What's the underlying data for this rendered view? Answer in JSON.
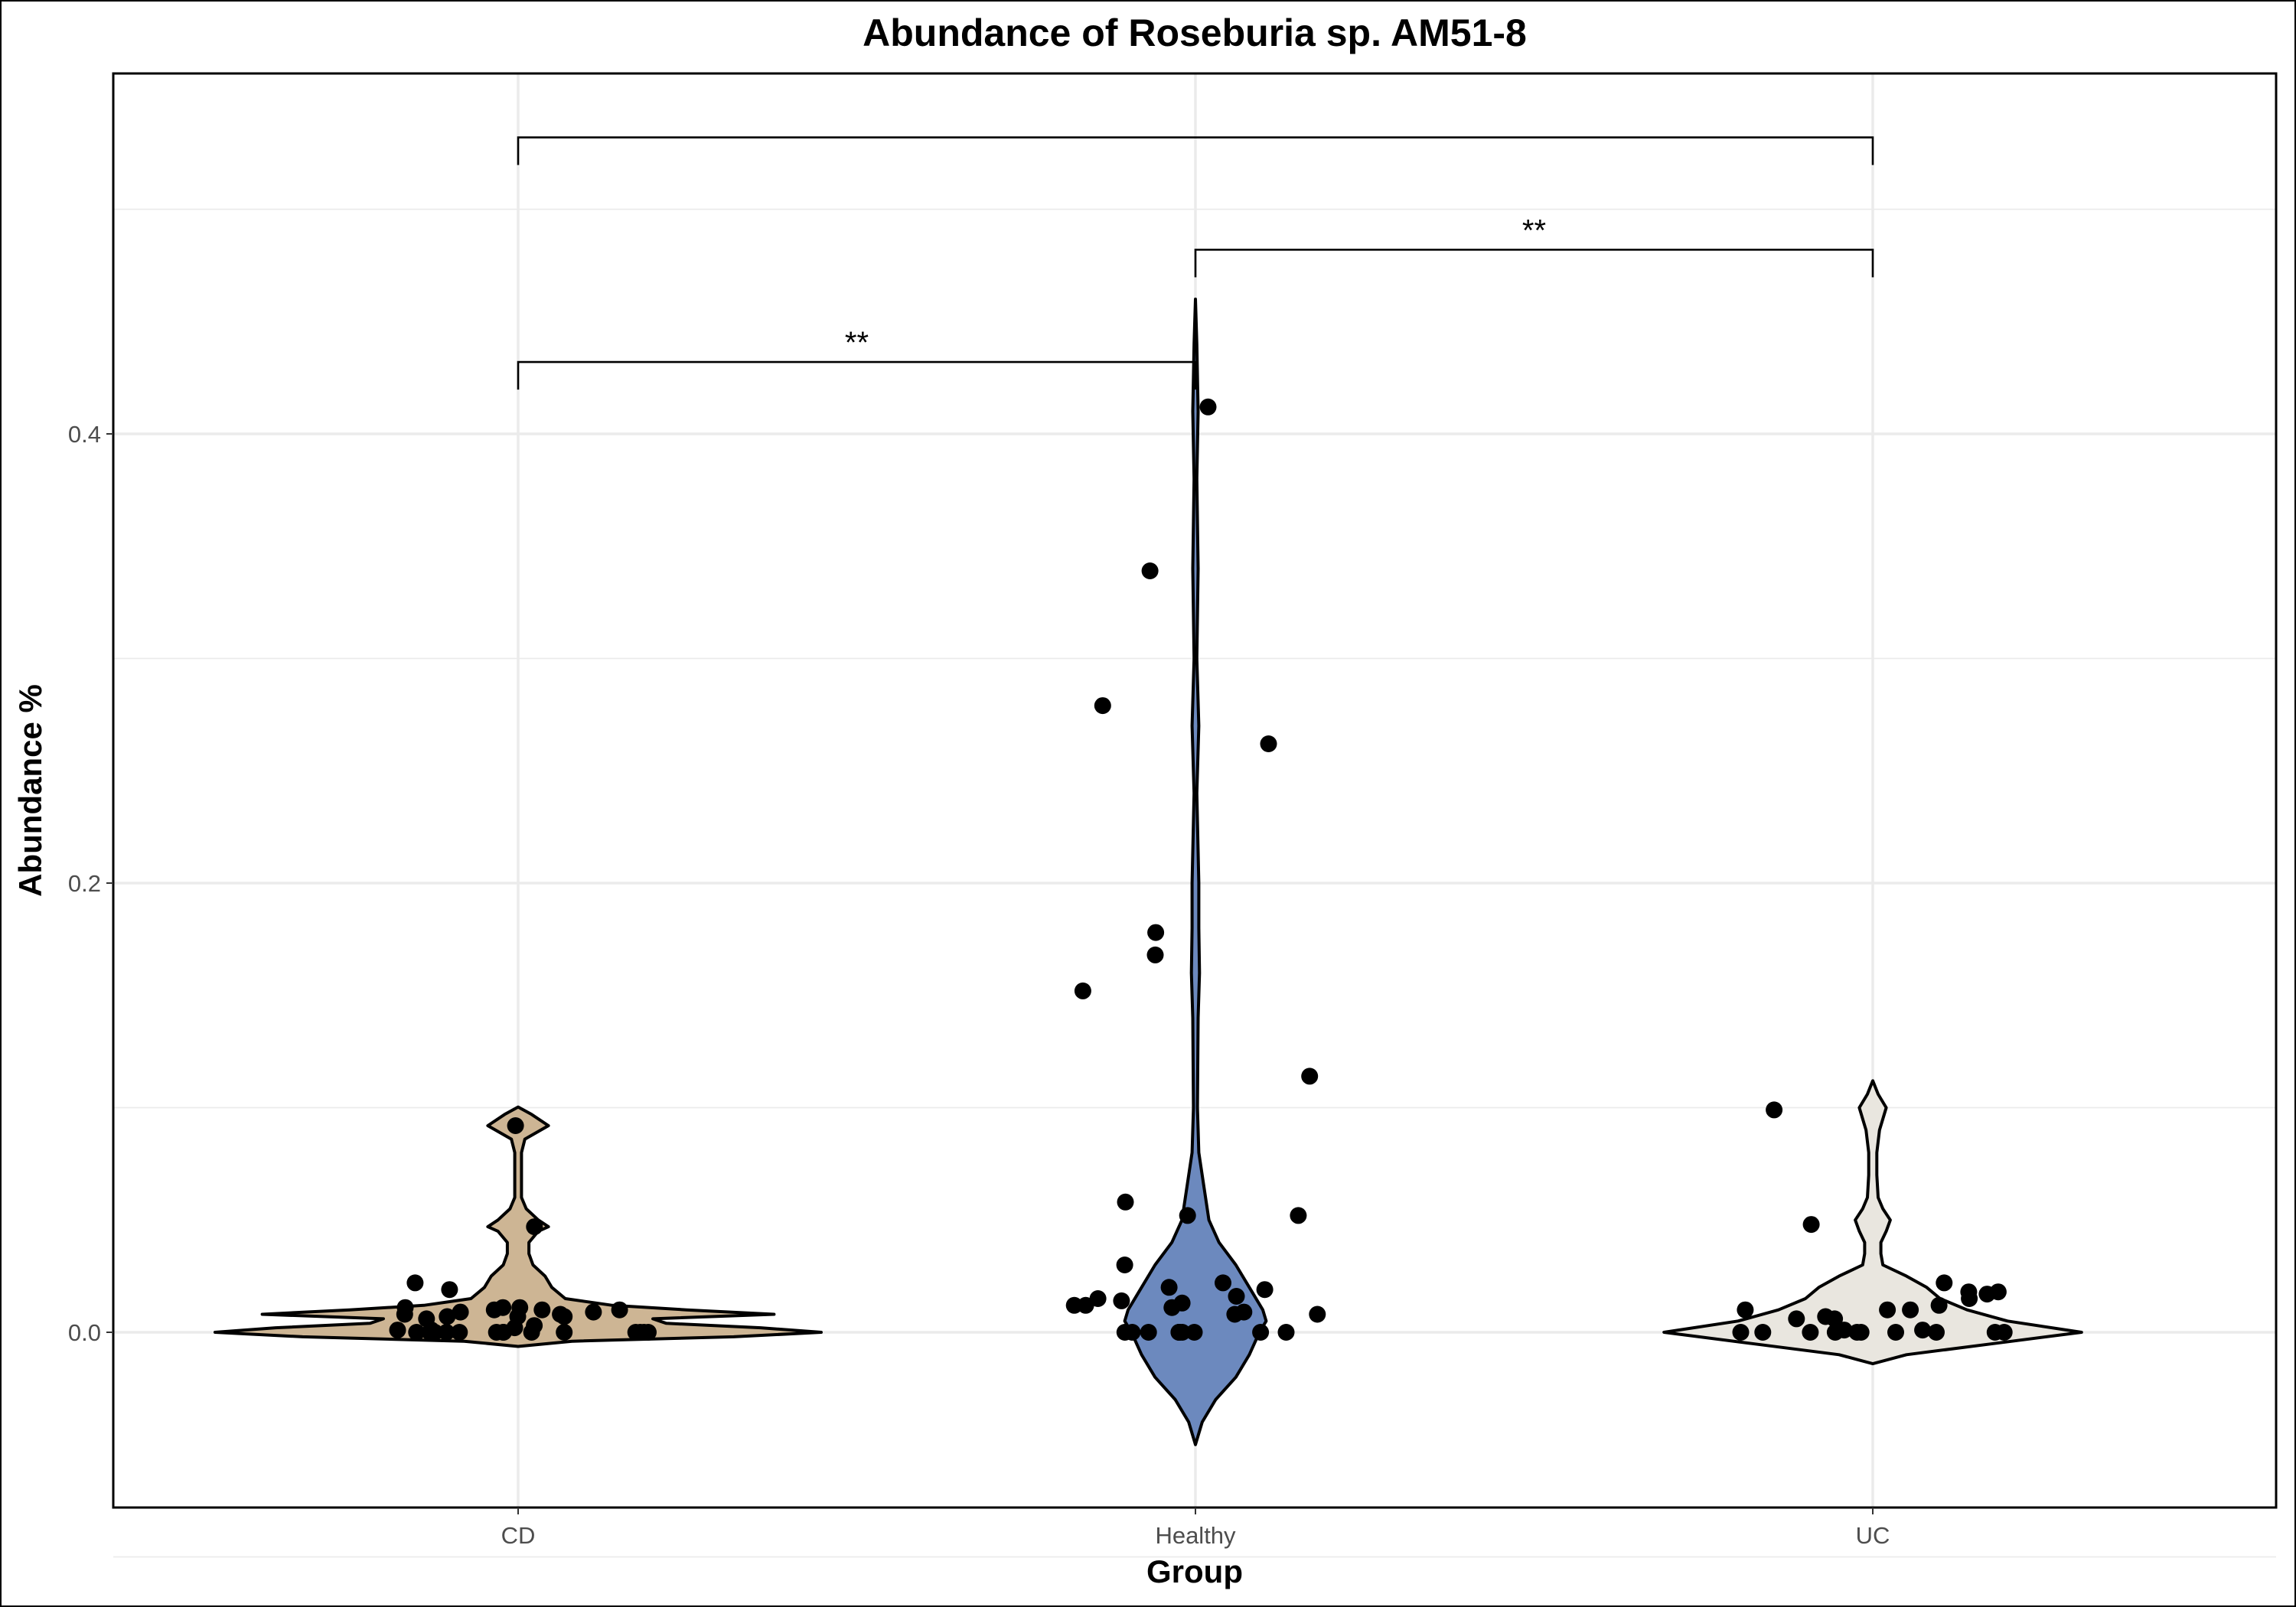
{
  "chart_data": {
    "type": "violin",
    "title": "Abundance of Roseburia sp. AM51-8",
    "xlabel": "Group",
    "ylabel": "Abundance %",
    "categories": [
      "CD",
      "Healthy",
      "UC"
    ],
    "ylim": [
      -0.078,
      0.56
    ],
    "yticks": [
      0.0,
      0.2,
      0.4
    ],
    "ytick_labels": [
      "0.0",
      "0.2",
      "0.4"
    ],
    "grid": true,
    "legend": "none",
    "colors": {
      "CD": "#cdb594",
      "Healthy": "#6c89be",
      "UC": "#e9e6df",
      "points": "#000000",
      "outline": "#000000"
    },
    "violins": [
      {
        "group": "CD",
        "profile": [
          [
            -0.0063,
            0.0
          ],
          [
            -0.004,
            0.08
          ],
          [
            -0.002,
            0.32
          ],
          [
            0.0,
            0.45
          ],
          [
            0.002,
            0.36
          ],
          [
            0.004,
            0.22
          ],
          [
            0.006,
            0.2
          ],
          [
            0.008,
            0.38
          ],
          [
            0.01,
            0.25
          ],
          [
            0.012,
            0.14
          ],
          [
            0.015,
            0.07
          ],
          [
            0.02,
            0.05
          ],
          [
            0.025,
            0.04
          ],
          [
            0.03,
            0.022
          ],
          [
            0.035,
            0.016
          ],
          [
            0.04,
            0.016
          ],
          [
            0.045,
            0.03
          ],
          [
            0.047,
            0.045
          ],
          [
            0.05,
            0.03
          ],
          [
            0.055,
            0.012
          ],
          [
            0.06,
            0.005
          ],
          [
            0.07,
            0.005
          ],
          [
            0.08,
            0.005
          ],
          [
            0.086,
            0.01
          ],
          [
            0.092,
            0.045
          ],
          [
            0.097,
            0.02
          ],
          [
            0.1003,
            0.0
          ]
        ]
      },
      {
        "group": "Healthy",
        "profile": [
          [
            -0.05,
            0.0
          ],
          [
            -0.04,
            0.01
          ],
          [
            -0.03,
            0.03
          ],
          [
            -0.02,
            0.06
          ],
          [
            -0.01,
            0.08
          ],
          [
            0.0,
            0.095
          ],
          [
            0.005,
            0.105
          ],
          [
            0.01,
            0.1
          ],
          [
            0.02,
            0.08
          ],
          [
            0.03,
            0.06
          ],
          [
            0.04,
            0.035
          ],
          [
            0.05,
            0.02
          ],
          [
            0.06,
            0.015
          ],
          [
            0.08,
            0.005
          ],
          [
            0.1,
            0.003
          ],
          [
            0.14,
            0.004
          ],
          [
            0.16,
            0.006
          ],
          [
            0.18,
            0.005
          ],
          [
            0.2,
            0.005
          ],
          [
            0.24,
            0.002
          ],
          [
            0.27,
            0.005
          ],
          [
            0.3,
            0.002
          ],
          [
            0.34,
            0.004
          ],
          [
            0.38,
            0.002
          ],
          [
            0.41,
            0.004
          ],
          [
            0.44,
            0.002
          ],
          [
            0.46,
            0.0
          ]
        ]
      },
      {
        "group": "UC",
        "profile": [
          [
            -0.014,
            0.0
          ],
          [
            -0.01,
            0.05
          ],
          [
            -0.005,
            0.18
          ],
          [
            0.0,
            0.31
          ],
          [
            0.005,
            0.2
          ],
          [
            0.01,
            0.14
          ],
          [
            0.015,
            0.1
          ],
          [
            0.02,
            0.08
          ],
          [
            0.025,
            0.05
          ],
          [
            0.03,
            0.015
          ],
          [
            0.035,
            0.012
          ],
          [
            0.04,
            0.012
          ],
          [
            0.045,
            0.02
          ],
          [
            0.05,
            0.026
          ],
          [
            0.055,
            0.015
          ],
          [
            0.06,
            0.008
          ],
          [
            0.07,
            0.006
          ],
          [
            0.08,
            0.006
          ],
          [
            0.09,
            0.01
          ],
          [
            0.1,
            0.02
          ],
          [
            0.106,
            0.008
          ],
          [
            0.112,
            0.0
          ]
        ]
      }
    ],
    "points": [
      {
        "group": "CD",
        "values": [
          0.092,
          0.047,
          0.022,
          0.019,
          0.011,
          0.011,
          0.011,
          0.01,
          0.01,
          0.01,
          0.009,
          0.009,
          0.008,
          0.008,
          0.007,
          0.007,
          0.007,
          0.006,
          0.003,
          0.002,
          0.001,
          0.001,
          0.0,
          0.0,
          0.0,
          0.0,
          0.0,
          0.0,
          0.0,
          0.0,
          0.0,
          0.0,
          0.0,
          0.0,
          0.0,
          0.0
        ]
      },
      {
        "group": "Healthy",
        "values": [
          0.412,
          0.339,
          0.279,
          0.262,
          0.178,
          0.168,
          0.152,
          0.114,
          0.058,
          0.052,
          0.052,
          0.03,
          0.022,
          0.02,
          0.019,
          0.016,
          0.015,
          0.014,
          0.013,
          0.012,
          0.012,
          0.011,
          0.009,
          0.008,
          0.008,
          0.0,
          0.0,
          0.0,
          0.0,
          0.0,
          0.0,
          0.0,
          0.0,
          0.0,
          0.0
        ]
      },
      {
        "group": "UC",
        "values": [
          0.099,
          0.048,
          0.022,
          0.018,
          0.018,
          0.017,
          0.015,
          0.012,
          0.01,
          0.01,
          0.01,
          0.007,
          0.006,
          0.006,
          0.001,
          0.001,
          0.0,
          0.0,
          0.0,
          0.0,
          0.0,
          0.0,
          0.0,
          0.0,
          0.0,
          0.0
        ]
      }
    ],
    "significance": [
      {
        "from": "CD",
        "to": "Healthy",
        "y": 0.432,
        "label": "**"
      },
      {
        "from": "Healthy",
        "to": "UC",
        "y": 0.482,
        "label": "**"
      },
      {
        "from": "CD",
        "to": "UC",
        "y": 0.532,
        "label": ""
      }
    ]
  }
}
